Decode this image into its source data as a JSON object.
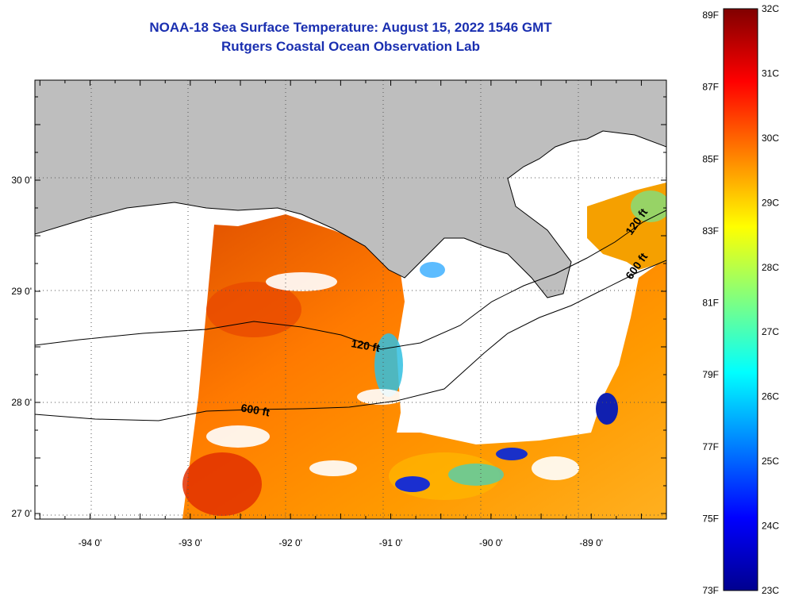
{
  "title": {
    "line1": "NOAA-18 Sea Surface Temperature:  August 15, 2022 1546 GMT",
    "line2": "Rutgers Coastal Ocean Observation Lab"
  },
  "map": {
    "lon_range": [
      -94.55,
      -88.25
    ],
    "lat_range": [
      26.95,
      30.9
    ],
    "x_tick_labels": [
      {
        "lon": -94,
        "label": "-94 0'"
      },
      {
        "lon": -93,
        "label": "-93 0'"
      },
      {
        "lon": -92,
        "label": "-92 0'"
      },
      {
        "lon": -91,
        "label": "-91 0'"
      },
      {
        "lon": -90,
        "label": "-90 0'"
      },
      {
        "lon": -89,
        "label": "-89 0'"
      }
    ],
    "y_tick_labels": [
      {
        "lat": 30,
        "label": "30 0'"
      },
      {
        "lat": 29,
        "label": "29 0'"
      },
      {
        "lat": 28,
        "label": "28 0'"
      },
      {
        "lat": 27,
        "label": "27 0'"
      }
    ],
    "contour_labels": [
      {
        "text": "120 ft",
        "lon": -91.4,
        "lat": 28.5
      },
      {
        "text": "600 ft",
        "lon": -92.5,
        "lat": 27.92
      },
      {
        "text": "120 ft",
        "lon": -88.6,
        "lat": 29.5
      },
      {
        "text": "600 ft",
        "lon": -88.6,
        "lat": 29.1
      }
    ],
    "colors": {
      "land": "#bebebe",
      "cloud": "#ffffff",
      "grid": "#555555"
    }
  },
  "colorbar": {
    "fahrenheit_labels": [
      "89F",
      "87F",
      "85F",
      "83F",
      "81F",
      "79F",
      "77F",
      "75F",
      "73F"
    ],
    "celsius_labels": [
      "32C",
      "31C",
      "30C",
      "29C",
      "28C",
      "27C",
      "26C",
      "25C",
      "24C",
      "23C"
    ],
    "range_c": [
      23,
      32
    ],
    "gradient": [
      "#800000",
      "#ff0000",
      "#ff8000",
      "#ffff00",
      "#80ff80",
      "#00ffff",
      "#0080ff",
      "#0000ff",
      "#00008f"
    ]
  }
}
